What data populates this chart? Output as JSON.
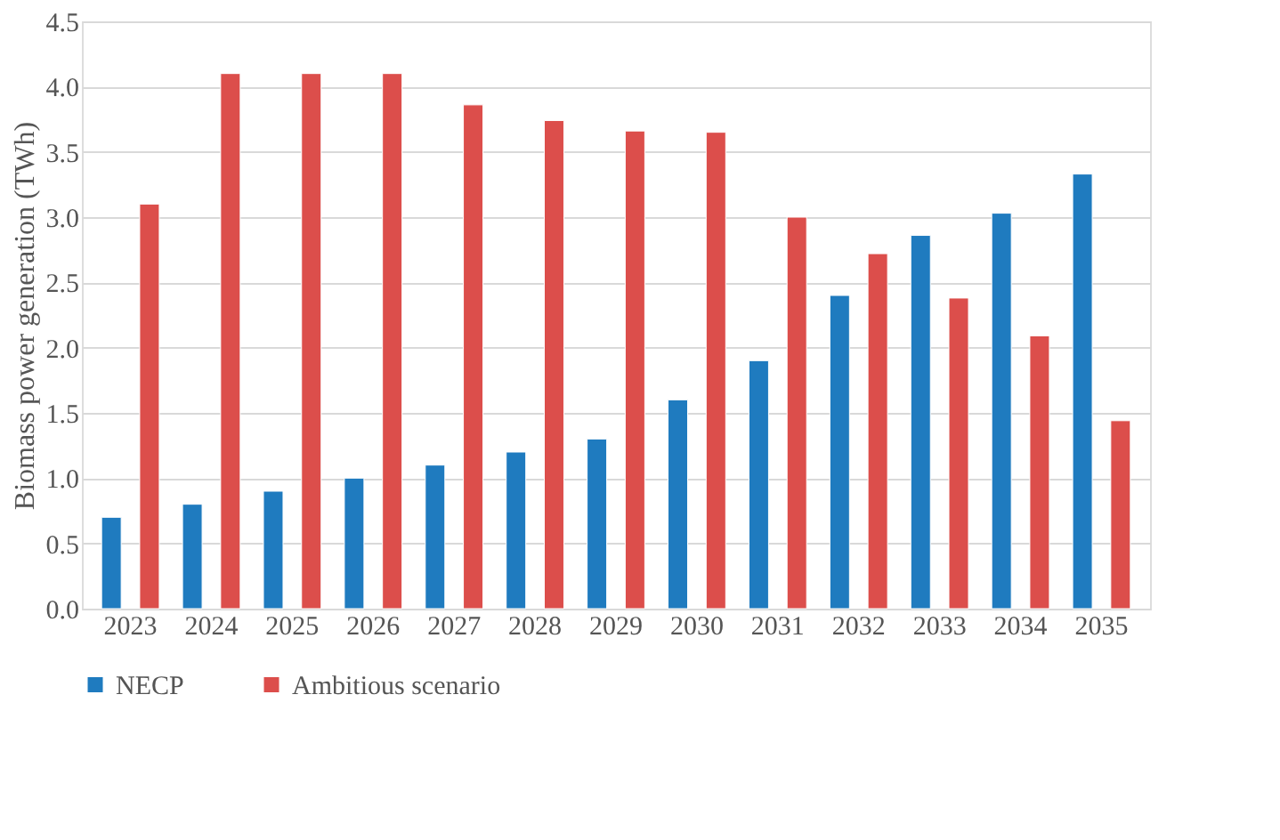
{
  "chart_data": {
    "type": "bar",
    "ylabel": "Biomass power generation (TWh)",
    "categories": [
      "2023",
      "2024",
      "2025",
      "2026",
      "2027",
      "2028",
      "2029",
      "2030",
      "2031",
      "2032",
      "2033",
      "2034",
      "2035"
    ],
    "series": [
      {
        "name": "NECP",
        "color": "#1f7bbf",
        "values": [
          0.7,
          0.8,
          0.9,
          1.0,
          1.1,
          1.2,
          1.3,
          1.6,
          1.9,
          2.4,
          2.86,
          3.03,
          3.33
        ]
      },
      {
        "name": "Ambitious scenario",
        "color": "#dc4e4b",
        "values": [
          3.1,
          4.1,
          4.1,
          4.1,
          3.86,
          3.74,
          3.66,
          3.65,
          3.0,
          2.72,
          2.38,
          2.09,
          1.44
        ]
      }
    ],
    "ylim": [
      0,
      4.5
    ],
    "yticks": [
      {
        "value": 0,
        "label": "0.0"
      },
      {
        "value": 0.5,
        "label": "0.5"
      },
      {
        "value": 1,
        "label": "1.0"
      },
      {
        "value": 1.5,
        "label": "1.5"
      },
      {
        "value": 2,
        "label": "2.0"
      },
      {
        "value": 2.5,
        "label": "2.5"
      },
      {
        "value": 3,
        "label": "3.0"
      },
      {
        "value": 3.5,
        "label": "3.5"
      },
      {
        "value": 4,
        "label": "4.0"
      },
      {
        "value": 4.5,
        "label": "4.5"
      }
    ],
    "grid": "y",
    "legend": "bottom"
  }
}
